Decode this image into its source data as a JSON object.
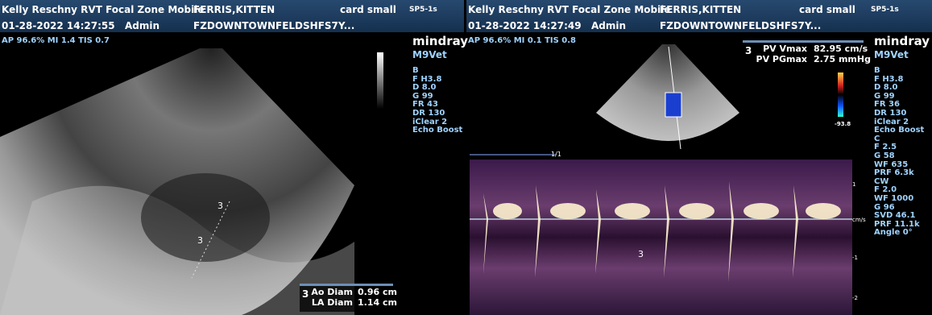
{
  "panels": [
    {
      "header": {
        "operator": "Kelly Reschny RVT Focal Zone Mobile",
        "patient": "FERRIS,KITTEN",
        "preset": "card small",
        "probe": "SP5-1s",
        "datetime": "01-28-2022 14:27:55",
        "user": "Admin",
        "facility": "FZDOWNTOWNFELDSHFS7Y..."
      },
      "acoustic": "AP 96.6% MI 1.4 TIS 0.7",
      "brand": "mindray",
      "model": "M9Vet",
      "params": [
        "B",
        "F H3.8",
        "D 8.0",
        "G 99",
        "FR 43",
        "DR 130",
        "iClear 2",
        "Echo Boost"
      ],
      "measure_index": "3",
      "measurements": [
        {
          "label": "Ao Diam",
          "value": "0.96 cm"
        },
        {
          "label": "LA Diam",
          "value": "1.14 cm"
        }
      ],
      "markers": [
        "3",
        "3"
      ]
    },
    {
      "header": {
        "operator": "Kelly Reschny RVT Focal Zone Mobile",
        "patient": "FERRIS,KITTEN",
        "preset": "card small",
        "probe": "SP5-1s",
        "datetime": "01-28-2022 14:27:49",
        "user": "Admin",
        "facility": "FZDOWNTOWNFELDSHFS7Y..."
      },
      "acoustic": "AP 96.6% MI 0.1 TIS 0.8",
      "brand": "mindray",
      "model": "M9Vet",
      "params": [
        "B",
        "F H3.8",
        "D 8.0",
        "G 99",
        "FR 36",
        "DR 130",
        "iClear 2",
        "Echo Boost",
        "C",
        "F 2.5",
        "G 58",
        "WF 635",
        "PRF 6.3k",
        "CW",
        "F 2.0",
        "WF 1000",
        "G 96",
        "SVD 46.1",
        "PRF 11.1k",
        "Angle 0°"
      ],
      "measure_index": "3",
      "measurements": [
        {
          "label": "PV Vmax",
          "value": "82.95 cm/s"
        },
        {
          "label": "PV PGmax",
          "value": "2.75 mmHg"
        }
      ],
      "markers": [
        "3"
      ],
      "color_scale_min": "-93.8",
      "sweep": "1/1",
      "doppler_scale": [
        "1",
        "cm/s",
        "-1",
        "-2"
      ]
    }
  ]
}
